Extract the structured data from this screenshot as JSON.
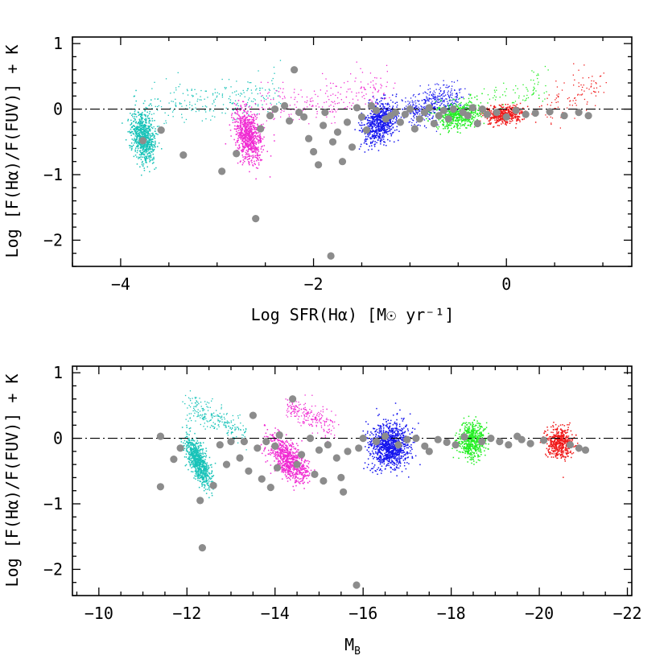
{
  "colors": {
    "cyan": "#18c3b8",
    "magenta": "#f02ad2",
    "blue": "#1616ee",
    "green": "#22ee22",
    "red": "#f01a1a",
    "gray": "#8c8c8c"
  },
  "chart_data": [
    {
      "type": "scatter",
      "title": "",
      "xlabel": "Log SFR(Hα) [M☉ yr⁻¹]",
      "ylabel": "Log [F(Hα)/F(FUV)] + K",
      "xlim": [
        -4.5,
        1.3
      ],
      "ylim": [
        -2.4,
        1.1
      ],
      "xticks_major": [
        -4,
        -2,
        0
      ],
      "xtick_labels": [
        "−4",
        "−2",
        "0"
      ],
      "yticks_major": [
        -2,
        -1,
        0,
        1
      ],
      "ytick_labels": [
        "−2",
        "−1",
        "0",
        "1"
      ],
      "reference_line_y": 0,
      "clouds": [
        {
          "name": "cyan",
          "color": "cyan",
          "count": 750,
          "core": {
            "x": -3.77,
            "y": -0.42,
            "sx": 0.06,
            "sy": 0.2,
            "rho": -0.3
          },
          "tail": {
            "from": [
              -3.7,
              0.03
            ],
            "to": [
              -2.35,
              0.25
            ],
            "count": 220,
            "wx": 0.03,
            "wy": 0.17
          }
        },
        {
          "name": "magenta",
          "color": "magenta",
          "count": 750,
          "core": {
            "x": -2.68,
            "y": -0.4,
            "sx": 0.07,
            "sy": 0.2,
            "rho": -0.3
          },
          "tail": {
            "from": [
              -2.55,
              0.05
            ],
            "to": [
              -1.2,
              0.3
            ],
            "count": 220,
            "wx": 0.03,
            "wy": 0.17
          }
        },
        {
          "name": "blue",
          "color": "blue",
          "count": 700,
          "core": {
            "x": -1.32,
            "y": -0.2,
            "sx": 0.09,
            "sy": 0.15,
            "rho": 0.3
          },
          "tail": {
            "from": [
              -1.0,
              -0.05
            ],
            "to": [
              -0.55,
              0.2
            ],
            "count": 450,
            "wx": 0.08,
            "wy": 0.12
          }
        },
        {
          "name": "green",
          "color": "green",
          "count": 550,
          "core": {
            "x": -0.5,
            "y": -0.08,
            "sx": 0.12,
            "sy": 0.1,
            "rho": 0.2
          },
          "tail": {
            "from": [
              -0.2,
              0.08
            ],
            "to": [
              0.4,
              0.38
            ],
            "count": 80,
            "wx": 0.04,
            "wy": 0.15
          }
        },
        {
          "name": "red",
          "color": "red",
          "count": 450,
          "core": {
            "x": -0.02,
            "y": -0.08,
            "sx": 0.1,
            "sy": 0.07,
            "rho": 0.2
          },
          "tail": {
            "from": [
              0.4,
              0.0
            ],
            "to": [
              1.0,
              0.45
            ],
            "count": 100,
            "wx": 0.06,
            "wy": 0.14
          }
        }
      ],
      "gray_points": [
        {
          "x": -3.77,
          "y": -0.48
        },
        {
          "x": -3.58,
          "y": -0.32
        },
        {
          "x": -3.35,
          "y": -0.7
        },
        {
          "x": -2.95,
          "y": -0.95
        },
        {
          "x": -2.8,
          "y": -0.68
        },
        {
          "x": -2.6,
          "y": -1.67
        },
        {
          "x": -2.55,
          "y": -0.3
        },
        {
          "x": -2.45,
          "y": -0.1
        },
        {
          "x": -2.4,
          "y": 0.0
        },
        {
          "x": -2.3,
          "y": 0.05
        },
        {
          "x": -2.25,
          "y": -0.18
        },
        {
          "x": -2.2,
          "y": 0.6
        },
        {
          "x": -2.15,
          "y": -0.05
        },
        {
          "x": -2.1,
          "y": -0.12
        },
        {
          "x": -2.05,
          "y": -0.45
        },
        {
          "x": -1.95,
          "y": -0.85
        },
        {
          "x": -1.9,
          "y": -0.25
        },
        {
          "x": -1.88,
          "y": -0.05
        },
        {
          "x": -1.82,
          "y": -2.24
        },
        {
          "x": -1.75,
          "y": -0.35
        },
        {
          "x": -1.7,
          "y": -0.8
        },
        {
          "x": -1.65,
          "y": -0.2
        },
        {
          "x": -1.6,
          "y": -0.58
        },
        {
          "x": -1.55,
          "y": 0.02
        },
        {
          "x": -1.5,
          "y": -0.12
        },
        {
          "x": -1.45,
          "y": -0.32
        },
        {
          "x": -1.4,
          "y": 0.05
        },
        {
          "x": -1.35,
          "y": -0.02
        },
        {
          "x": -1.25,
          "y": -0.15
        },
        {
          "x": -1.2,
          "y": -0.1
        },
        {
          "x": -1.15,
          "y": -0.05
        },
        {
          "x": -1.1,
          "y": -0.2
        },
        {
          "x": -1.05,
          "y": -0.08
        },
        {
          "x": -1.0,
          "y": 0.0
        },
        {
          "x": -0.95,
          "y": -0.3
        },
        {
          "x": -0.9,
          "y": -0.15
        },
        {
          "x": -0.85,
          "y": -0.05
        },
        {
          "x": -0.8,
          "y": 0.02
        },
        {
          "x": -0.75,
          "y": -0.22
        },
        {
          "x": -0.7,
          "y": -0.1
        },
        {
          "x": -0.65,
          "y": -0.02
        },
        {
          "x": -0.6,
          "y": -0.15
        },
        {
          "x": -0.55,
          "y": 0.0
        },
        {
          "x": -0.45,
          "y": -0.05
        },
        {
          "x": -0.4,
          "y": -0.1
        },
        {
          "x": -0.35,
          "y": 0.02
        },
        {
          "x": -0.3,
          "y": -0.22
        },
        {
          "x": -0.25,
          "y": 0.0
        },
        {
          "x": -0.2,
          "y": -0.08
        },
        {
          "x": -0.1,
          "y": -0.05
        },
        {
          "x": 0.0,
          "y": -0.12
        },
        {
          "x": 0.1,
          "y": -0.02
        },
        {
          "x": 0.2,
          "y": -0.08
        },
        {
          "x": 0.3,
          "y": -0.06
        },
        {
          "x": 0.45,
          "y": -0.04
        },
        {
          "x": 0.6,
          "y": -0.1
        },
        {
          "x": 0.75,
          "y": -0.05
        },
        {
          "x": 0.85,
          "y": -0.1
        },
        {
          "x": -1.8,
          "y": -0.5
        },
        {
          "x": -2.0,
          "y": -0.65
        }
      ]
    },
    {
      "type": "scatter",
      "title": "",
      "xlabel": "MB",
      "xlabel_main": "M",
      "xlabel_sub": "B",
      "ylabel": "Log [F(Hα)/F(FUV)] + K",
      "xlim": [
        -9.4,
        -22.1
      ],
      "ylim": [
        -2.4,
        1.1
      ],
      "xticks_major": [
        -10,
        -12,
        -14,
        -16,
        -18,
        -20,
        -22
      ],
      "xtick_labels": [
        "−10",
        "−12",
        "−14",
        "−16",
        "−18",
        "−20",
        "−22"
      ],
      "yticks_major": [
        -2,
        -1,
        0,
        1
      ],
      "ytick_labels": [
        "−2",
        "−1",
        "0",
        "1"
      ],
      "reference_line_y": 0,
      "clouds": [
        {
          "name": "cyan",
          "color": "cyan",
          "count": 750,
          "core": {
            "x": -12.25,
            "y": -0.35,
            "sx": 0.14,
            "sy": 0.18,
            "rho": 0.7
          },
          "tail": {
            "from": [
              -12.0,
              0.5
            ],
            "to": [
              -13.3,
              0.1
            ],
            "count": 220,
            "wx": 0.08,
            "wy": 0.1
          }
        },
        {
          "name": "magenta",
          "color": "magenta",
          "count": 750,
          "core": {
            "x": -14.3,
            "y": -0.32,
            "sx": 0.22,
            "sy": 0.17,
            "rho": 0.6
          },
          "tail": {
            "from": [
              -14.3,
              0.5
            ],
            "to": [
              -15.3,
              0.15
            ],
            "count": 220,
            "wx": 0.08,
            "wy": 0.1
          }
        },
        {
          "name": "blue",
          "color": "blue",
          "count": 1000,
          "core": {
            "x": -16.6,
            "y": -0.1,
            "sx": 0.22,
            "sy": 0.17,
            "rho": 0.0
          }
        },
        {
          "name": "green",
          "color": "green",
          "count": 550,
          "core": {
            "x": -18.45,
            "y": -0.03,
            "sx": 0.15,
            "sy": 0.14,
            "rho": 0.0
          }
        },
        {
          "name": "red",
          "color": "red",
          "count": 500,
          "core": {
            "x": -20.45,
            "y": -0.06,
            "sx": 0.14,
            "sy": 0.11,
            "rho": 0.0
          }
        }
      ],
      "gray_points": [
        {
          "x": -11.4,
          "y": 0.03
        },
        {
          "x": -11.4,
          "y": -0.74
        },
        {
          "x": -11.7,
          "y": -0.32
        },
        {
          "x": -11.85,
          "y": -0.15
        },
        {
          "x": -12.3,
          "y": -0.95
        },
        {
          "x": -12.35,
          "y": -1.67
        },
        {
          "x": -12.6,
          "y": -0.72
        },
        {
          "x": -12.75,
          "y": -0.1
        },
        {
          "x": -13.0,
          "y": -0.05
        },
        {
          "x": -13.2,
          "y": -0.3
        },
        {
          "x": -13.4,
          "y": -0.5
        },
        {
          "x": -13.5,
          "y": 0.35
        },
        {
          "x": -13.6,
          "y": -0.15
        },
        {
          "x": -13.7,
          "y": -0.62
        },
        {
          "x": -13.8,
          "y": -0.05
        },
        {
          "x": -13.9,
          "y": -0.75
        },
        {
          "x": -14.0,
          "y": -0.12
        },
        {
          "x": -14.05,
          "y": -0.45
        },
        {
          "x": -14.1,
          "y": 0.05
        },
        {
          "x": -14.4,
          "y": 0.6
        },
        {
          "x": -14.5,
          "y": -0.4
        },
        {
          "x": -14.6,
          "y": -0.25
        },
        {
          "x": -14.8,
          "y": 0.0
        },
        {
          "x": -14.9,
          "y": -0.55
        },
        {
          "x": -15.0,
          "y": -0.18
        },
        {
          "x": -15.2,
          "y": -0.1
        },
        {
          "x": -15.4,
          "y": -0.3
        },
        {
          "x": -15.5,
          "y": -0.6
        },
        {
          "x": -15.55,
          "y": -0.82
        },
        {
          "x": -15.65,
          "y": -0.2
        },
        {
          "x": -15.85,
          "y": -2.24
        },
        {
          "x": -15.9,
          "y": -0.15
        },
        {
          "x": -16.0,
          "y": 0.0
        },
        {
          "x": -16.3,
          "y": -0.05
        },
        {
          "x": -16.5,
          "y": 0.03
        },
        {
          "x": -16.8,
          "y": -0.1
        },
        {
          "x": -17.0,
          "y": -0.02
        },
        {
          "x": -17.2,
          "y": 0.0
        },
        {
          "x": -17.4,
          "y": -0.12
        },
        {
          "x": -17.5,
          "y": -0.2
        },
        {
          "x": -17.7,
          "y": -0.02
        },
        {
          "x": -17.9,
          "y": -0.06
        },
        {
          "x": -18.1,
          "y": -0.1
        },
        {
          "x": -18.3,
          "y": 0.02
        },
        {
          "x": -18.7,
          "y": -0.05
        },
        {
          "x": -18.9,
          "y": 0.0
        },
        {
          "x": -19.1,
          "y": -0.05
        },
        {
          "x": -19.3,
          "y": -0.1
        },
        {
          "x": -19.5,
          "y": 0.03
        },
        {
          "x": -19.6,
          "y": -0.02
        },
        {
          "x": -19.8,
          "y": -0.08
        },
        {
          "x": -20.1,
          "y": -0.03
        },
        {
          "x": -20.7,
          "y": -0.1
        },
        {
          "x": -20.9,
          "y": -0.15
        },
        {
          "x": -21.05,
          "y": -0.18
        },
        {
          "x": -15.1,
          "y": -0.65
        },
        {
          "x": -13.3,
          "y": -0.05
        },
        {
          "x": -12.9,
          "y": -0.4
        }
      ]
    }
  ]
}
